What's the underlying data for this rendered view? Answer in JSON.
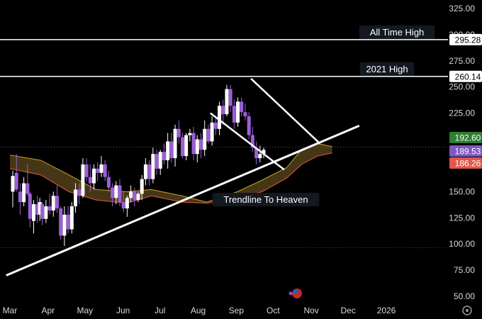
{
  "chart_data": {
    "type": "candlestick",
    "y_axis": {
      "ticks": [
        "325.00",
        "300.00",
        "275.00",
        "250.00",
        "225.00",
        "150.00",
        "125.00",
        "100.00",
        "75.00",
        "50.00"
      ],
      "ylim": [
        38,
        330
      ]
    },
    "x_axis": {
      "ticks": [
        "Mar",
        "Apr",
        "May",
        "Jun",
        "Jul",
        "Aug",
        "Sep",
        "Oct",
        "Nov",
        "Dec",
        "2026"
      ],
      "range": [
        "2025-03-01",
        "2026-01-13"
      ]
    },
    "price_labels": [
      {
        "text": "295.28",
        "value": 295.28,
        "bg": "#ffffff",
        "fg": "#000000"
      },
      {
        "text": "260.14",
        "value": 260.14,
        "bg": "#ffffff",
        "fg": "#000000"
      },
      {
        "text": "192.60",
        "value": 192.6,
        "bg": "#2e7d32",
        "fg": "#ffffff"
      },
      {
        "text": "189.53",
        "value": 189.53,
        "bg": "#7e57c2",
        "fg": "#ffffff"
      },
      {
        "text": "186.26",
        "value": 186.26,
        "bg": "#e0584a",
        "fg": "#ffffff"
      }
    ],
    "horizontal_levels": [
      {
        "value": 295.28,
        "label": "All Time High"
      },
      {
        "value": 260.14,
        "label": "2021 High"
      }
    ],
    "dotted_levels": [
      192.6,
      96.5
    ],
    "trendline": {
      "label": "Trendline To Heaven",
      "points": [
        [
          "2025-02-26",
          70
        ],
        [
          "2025-12-10",
          213
        ]
      ]
    },
    "channel_lines": [
      {
        "points": [
          [
            "2025-08-11",
            225
          ],
          [
            "2025-10-10",
            171
          ]
        ]
      },
      {
        "points": [
          [
            "2025-09-13",
            258
          ],
          [
            "2025-11-08",
            196
          ]
        ]
      }
    ],
    "ribbon": {
      "colors": {
        "fill": "#5c4a1e",
        "line_fast": "#c9a227",
        "line_slow": "#e0584a",
        "line_mid": "#7cb342"
      },
      "upper": [
        [
          0,
          185
        ],
        [
          25,
          180
        ],
        [
          48,
          166
        ],
        [
          70,
          152
        ],
        [
          95,
          150
        ],
        [
          115,
          152
        ],
        [
          140,
          146
        ],
        [
          160,
          140
        ],
        [
          185,
          150
        ],
        [
          205,
          161
        ],
        [
          225,
          173
        ],
        [
          237,
          190
        ],
        [
          250,
          196
        ],
        [
          262,
          193
        ]
      ],
      "lower": [
        [
          0,
          172
        ],
        [
          25,
          166
        ],
        [
          48,
          150
        ],
        [
          70,
          142
        ],
        [
          95,
          139
        ],
        [
          115,
          146
        ],
        [
          140,
          140
        ],
        [
          160,
          139
        ],
        [
          185,
          143
        ],
        [
          205,
          150
        ],
        [
          225,
          163
        ],
        [
          237,
          176
        ],
        [
          250,
          184
        ],
        [
          262,
          187
        ]
      ]
    },
    "candles": [
      [
        0,
        150,
        170,
        135,
        165
      ],
      [
        3,
        168,
        186,
        150,
        152
      ],
      [
        6,
        150,
        158,
        128,
        140
      ],
      [
        9,
        140,
        164,
        136,
        158
      ],
      [
        12,
        158,
        176,
        146,
        148
      ],
      [
        14,
        148,
        150,
        116,
        124
      ],
      [
        17,
        122,
        142,
        110,
        138
      ],
      [
        20,
        138,
        146,
        120,
        128
      ],
      [
        22,
        128,
        144,
        122,
        140
      ],
      [
        24,
        138,
        140,
        118,
        124
      ],
      [
        27,
        124,
        142,
        120,
        136
      ],
      [
        30,
        136,
        148,
        128,
        132
      ],
      [
        33,
        132,
        150,
        126,
        146
      ],
      [
        36,
        146,
        156,
        130,
        134
      ],
      [
        39,
        134,
        136,
        104,
        108
      ],
      [
        42,
        108,
        136,
        98,
        128
      ],
      [
        45,
        128,
        136,
        110,
        114
      ],
      [
        48,
        114,
        140,
        110,
        136
      ],
      [
        51,
        136,
        158,
        130,
        152
      ],
      [
        54,
        152,
        158,
        138,
        146
      ],
      [
        57,
        146,
        182,
        144,
        176
      ],
      [
        60,
        176,
        182,
        160,
        164
      ],
      [
        63,
        164,
        176,
        150,
        158
      ],
      [
        66,
        158,
        176,
        152,
        172
      ],
      [
        69,
        172,
        178,
        160,
        168
      ],
      [
        72,
        168,
        184,
        164,
        176
      ],
      [
        75,
        176,
        180,
        160,
        164
      ],
      [
        78,
        164,
        170,
        150,
        154
      ],
      [
        81,
        154,
        158,
        136,
        144
      ],
      [
        84,
        144,
        160,
        138,
        156
      ],
      [
        87,
        156,
        162,
        136,
        140
      ],
      [
        90,
        140,
        150,
        130,
        134
      ],
      [
        93,
        134,
        146,
        126,
        144
      ],
      [
        96,
        144,
        156,
        140,
        150
      ],
      [
        99,
        150,
        154,
        136,
        142
      ],
      [
        102,
        142,
        150,
        140,
        148
      ],
      [
        105,
        148,
        166,
        142,
        162
      ],
      [
        108,
        162,
        182,
        156,
        176
      ],
      [
        111,
        176,
        180,
        156,
        162
      ],
      [
        114,
        162,
        192,
        158,
        186
      ],
      [
        117,
        186,
        190,
        166,
        172
      ],
      [
        120,
        172,
        190,
        166,
        188
      ],
      [
        123,
        188,
        196,
        176,
        180
      ],
      [
        126,
        180,
        206,
        172,
        198
      ],
      [
        129,
        198,
        206,
        178,
        182
      ],
      [
        132,
        182,
        214,
        174,
        210
      ],
      [
        135,
        210,
        218,
        196,
        202
      ],
      [
        138,
        202,
        206,
        182,
        184
      ],
      [
        141,
        184,
        206,
        180,
        204
      ],
      [
        144,
        204,
        210,
        198,
        206
      ],
      [
        147,
        206,
        212,
        180,
        186
      ],
      [
        150,
        186,
        204,
        178,
        200
      ],
      [
        153,
        200,
        206,
        182,
        190
      ],
      [
        156,
        190,
        218,
        184,
        210
      ],
      [
        159,
        210,
        214,
        196,
        198
      ],
      [
        162,
        198,
        222,
        194,
        216
      ],
      [
        165,
        216,
        220,
        204,
        210
      ],
      [
        168,
        210,
        236,
        204,
        232
      ],
      [
        171,
        232,
        238,
        214,
        224
      ],
      [
        174,
        224,
        252,
        222,
        248
      ],
      [
        177,
        248,
        252,
        226,
        232
      ],
      [
        180,
        232,
        238,
        210,
        216
      ],
      [
        183,
        216,
        240,
        212,
        236
      ],
      [
        186,
        236,
        240,
        222,
        226
      ],
      [
        189,
        226,
        234,
        218,
        222
      ],
      [
        192,
        222,
        226,
        200,
        204
      ],
      [
        195,
        204,
        212,
        188,
        192
      ],
      [
        198,
        192,
        198,
        176,
        182
      ],
      [
        201,
        182,
        194,
        178,
        186
      ],
      [
        204,
        186,
        192,
        182,
        190
      ]
    ]
  }
}
